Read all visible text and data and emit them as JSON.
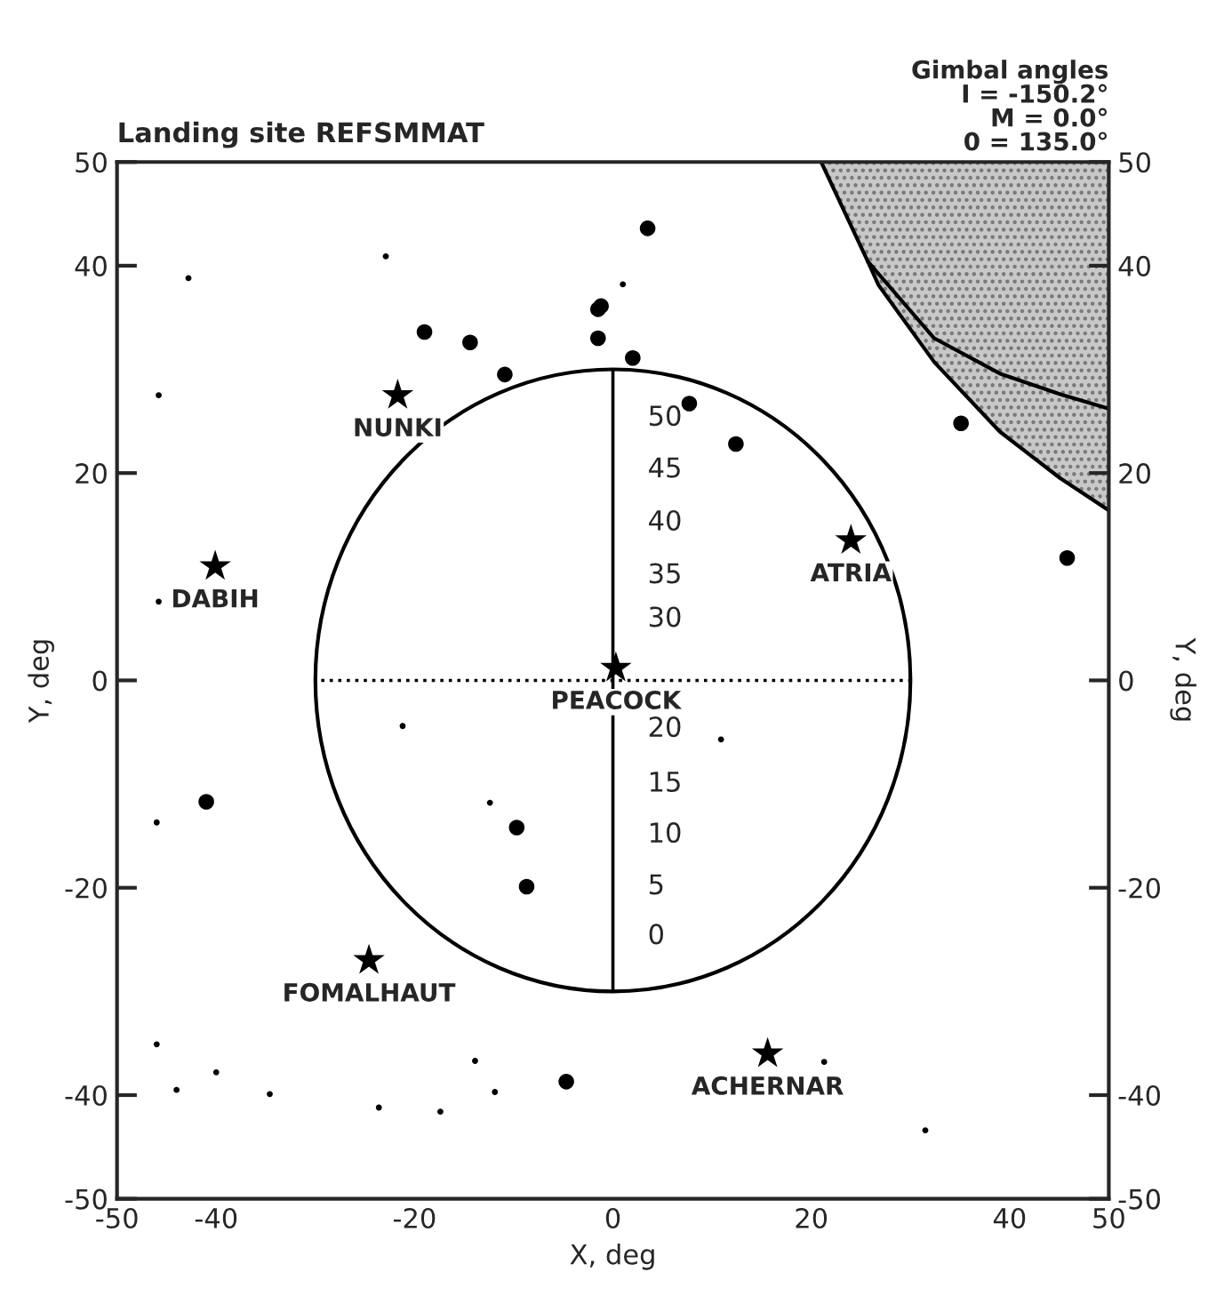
{
  "chart_data": {
    "type": "scatter",
    "title": "Landing site REFSMMAT",
    "xlabel": "X, deg",
    "ylabel": "Y, deg",
    "y2label": "Y, deg",
    "xlim": [
      -50,
      50
    ],
    "xticks": [
      -50,
      -40,
      -20,
      0,
      20,
      40,
      50
    ],
    "ylim": [
      -50,
      50
    ],
    "yticks": [
      -50,
      -40,
      -20,
      0,
      20,
      40,
      50
    ],
    "y2lim": [
      -50,
      50
    ],
    "y2ticks": [
      -50,
      -40,
      -20,
      0,
      20,
      40,
      50
    ],
    "grid": false,
    "legend": false,
    "series": [
      {
        "type": "line",
        "color": "#000000",
        "marker": "none",
        "line_style": "solid",
        "x": [
          21,
          25.7,
          26.8,
          32.4,
          39.0,
          45.1,
          50
        ],
        "values": [
          50,
          40.4,
          38.1,
          30.7,
          24.0,
          19.5,
          16.4
        ],
        "lower": [
          50,
          40.4,
          38.1,
          30.7,
          24.0,
          19.5,
          16.4
        ],
        "upper": [
          50,
          50,
          50,
          50,
          50,
          50,
          50
        ]
      },
      {
        "type": "line",
        "color": "#000000",
        "marker": "none",
        "line_style": "solid",
        "x": [
          25.7,
          32.4,
          39.0,
          45.1,
          50
        ],
        "values": [
          40.4,
          33.0,
          29.6,
          27.6,
          26.2
        ]
      },
      {
        "marker": "circle",
        "color": "#000000",
        "x": [
          -19.0,
          -14.4,
          -10.9,
          -1.5,
          -1.2,
          -1.5,
          3.5,
          2.0,
          7.7,
          12.4,
          35.1,
          45.8,
          -41.0,
          -9.7,
          -8.7,
          -4.7
        ],
        "values": [
          33.6,
          32.6,
          29.5,
          35.8,
          36.1,
          33.0,
          43.6,
          31.1,
          26.7,
          22.8,
          24.8,
          11.8,
          -11.7,
          -14.2,
          -19.9,
          -38.7
        ]
      },
      {
        "marker": "circle",
        "color": "#000000",
        "x": [
          -22.9,
          -42.8,
          -45.8,
          -45.8,
          1.0,
          -21.2,
          -12.4,
          -46.0,
          -46.0,
          -40.0,
          -44.0,
          -34.6,
          -23.6,
          -17.4,
          -13.9,
          -11.9,
          10.9,
          31.5,
          21.3
        ],
        "values": [
          40.9,
          38.8,
          27.5,
          7.6,
          38.2,
          -4.4,
          -11.8,
          -13.7,
          -35.1,
          -37.8,
          -39.5,
          -39.9,
          -41.2,
          -41.6,
          -36.7,
          -39.7,
          -5.7,
          -43.4,
          -36.8
        ]
      },
      {
        "name": "NUNKI",
        "color": "#000000",
        "marker": "star",
        "x": [
          -21.7
        ],
        "values": [
          27.5
        ]
      },
      {
        "name": "DABIH",
        "color": "#000000",
        "marker": "star",
        "x": [
          -40.1
        ],
        "values": [
          11.0
        ]
      },
      {
        "name": "ATRIA",
        "color": "#000000",
        "marker": "star",
        "x": [
          24.0
        ],
        "values": [
          13.5
        ]
      },
      {
        "name": "PEACOCK",
        "color": "#000000",
        "marker": "star",
        "x": [
          0.3
        ],
        "values": [
          1.2
        ]
      },
      {
        "name": "FOMALHAUT",
        "color": "#000000",
        "marker": "star",
        "x": [
          -24.6
        ],
        "values": [
          -27.0
        ]
      },
      {
        "name": "ACHERNAR",
        "color": "#000000",
        "marker": "star",
        "x": [
          15.6
        ],
        "values": [
          -36.0
        ]
      }
    ],
    "ref_lines": [
      {
        "axis": "x",
        "value": 0,
        "line_style": "solid"
      },
      {
        "axis": "y",
        "value": 0,
        "line_style": "dotted"
      }
    ],
    "annotations": [
      "Gimbal angles\nI = -150.2°\nM = 0.0°\n0 = 135.0°",
      "50",
      "45",
      "40",
      "35",
      "30",
      "20",
      "15",
      "10",
      "5",
      "0"
    ]
  }
}
